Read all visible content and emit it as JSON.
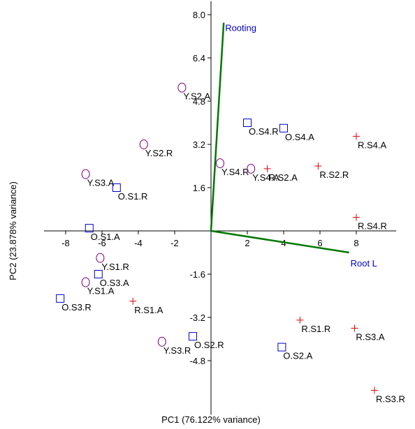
{
  "chart_data": {
    "type": "scatter",
    "title": "",
    "xlabel": "PC1 (76.122% variance)",
    "ylabel": "PC2 (23.878% variance)",
    "xlim": [
      -9.2,
      10.2
    ],
    "ylim": [
      -6.8,
      8.5
    ],
    "x_ticks": [
      -8,
      -6,
      -4,
      -2,
      2,
      4,
      6,
      8
    ],
    "x_tick_labels": [
      "-8",
      "-6",
      "-4",
      "-2",
      "2",
      "4",
      "6",
      "8"
    ],
    "y_ticks": [
      8.0,
      6.4,
      4.8,
      3.2,
      1.6,
      -1.6,
      -3.2,
      -4.8
    ],
    "y_tick_labels": [
      "8.0",
      "6.4",
      "4.8",
      "3.2",
      "1.6",
      "-1.6",
      "-3.2",
      "-4.8"
    ],
    "grid": false,
    "legend": "none",
    "colors": {
      "circle": "#800080",
      "square": "#0000cc",
      "plus": "#dd0000",
      "vector": "#007700",
      "vector_label": "#0000cc",
      "axis": "#000000"
    },
    "groups": [
      {
        "marker": "circle",
        "points": [
          {
            "label": "Y.S2.A",
            "x": -1.6,
            "y": 5.3
          },
          {
            "label": "Y.S2.R",
            "x": -3.7,
            "y": 3.2
          },
          {
            "label": "Y.S3.A",
            "x": -6.9,
            "y": 2.1
          },
          {
            "label": "Y.S4.R",
            "x": 0.5,
            "y": 2.5
          },
          {
            "label": "Y.S4.A",
            "x": 2.2,
            "y": 2.3
          },
          {
            "label": "Y.S1.R",
            "x": -6.1,
            "y": -1.0
          },
          {
            "label": "Y.S1.A",
            "x": -6.9,
            "y": -1.9
          },
          {
            "label": "Y.S3.R",
            "x": -2.7,
            "y": -4.1
          }
        ]
      },
      {
        "marker": "square",
        "points": [
          {
            "label": "O.S4.R",
            "x": 2.0,
            "y": 4.0
          },
          {
            "label": "O.S4.A",
            "x": 4.0,
            "y": 3.8
          },
          {
            "label": "O.S1.R",
            "x": -5.2,
            "y": 1.6
          },
          {
            "label": "O.S1.A",
            "x": -6.7,
            "y": 0.1
          },
          {
            "label": "O.S3.A",
            "x": -6.2,
            "y": -1.6
          },
          {
            "label": "O.S3.R",
            "x": -8.3,
            "y": -2.5
          },
          {
            "label": "O.S2.R",
            "x": -1.0,
            "y": -3.9
          },
          {
            "label": "O.S2.A",
            "x": 3.9,
            "y": -4.3
          }
        ]
      },
      {
        "marker": "plus",
        "points": [
          {
            "label": "R.S4.A",
            "x": 8.0,
            "y": 3.5
          },
          {
            "label": "R.S2.A",
            "x": 3.1,
            "y": 2.3
          },
          {
            "label": "R.S2.R",
            "x": 5.9,
            "y": 2.4
          },
          {
            "label": "R.S4.R",
            "x": 8.0,
            "y": 0.5
          },
          {
            "label": "R.S1.A",
            "x": -4.3,
            "y": -2.6
          },
          {
            "label": "R.S1.R",
            "x": 4.9,
            "y": -3.3
          },
          {
            "label": "R.S3.A",
            "x": 7.9,
            "y": -3.6
          },
          {
            "label": "R.S3.R",
            "x": 9.0,
            "y": -5.9
          }
        ]
      }
    ],
    "vectors": [
      {
        "label": "Rooting",
        "x": 0.7,
        "y": 7.7
      },
      {
        "label": "Root L",
        "x": 7.6,
        "y": -0.8
      }
    ]
  }
}
